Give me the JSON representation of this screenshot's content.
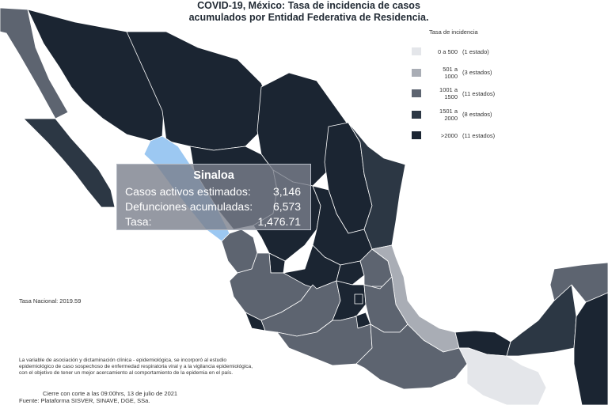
{
  "title": {
    "line1": "COVID-19, México: Tasa de incidencia de casos",
    "line2": "acumulados por Entidad Federativa de Residencia."
  },
  "legend": {
    "title": "Tasa de incidencia",
    "items": [
      {
        "range": "0 a 500",
        "count": "(1 estado)",
        "color": "#e4e6ea"
      },
      {
        "range": "501 a 1000",
        "count": "(3 estados)",
        "color": "#a9adb5"
      },
      {
        "range": "1001 a 1500",
        "count": "(11 estados)",
        "color": "#5d6470"
      },
      {
        "range": "1501 a 2000",
        "count": "(8 estados)",
        "color": "#2c3744"
      },
      {
        "range": ">2000",
        "count": "(11 estados)",
        "color": "#1b2532"
      }
    ]
  },
  "tooltip": {
    "state": "Sinaloa",
    "rows": [
      {
        "label": "Casos activos estimados:",
        "value": "3,146"
      },
      {
        "label": "Defunciones acumuladas:",
        "value": "6,573"
      },
      {
        "label": "Tasa:",
        "value": "1,476.71"
      }
    ],
    "highlight_color": "#9cc8f2"
  },
  "national_rate": "Tasa Nacional: 2019.59",
  "note": {
    "line1": "La variable de asociación y dictaminación clínica - epidemiológica, se incorporó al estudio",
    "line2": "epidemiológico de caso sospechoso de enfermedad respiratoria viral y a la vigilancia epidemiológica,",
    "line3": "con el objetivo de tener un mejor acercamiento al comportamiento de la epidemia en el país."
  },
  "footer": {
    "cutoff": "Cierre con corte a las 09:00hrs, 13 de julio de 2021",
    "source": "Fuente: Plataforma SISVER, SINAVE, DGE, SSa."
  },
  "colors": {
    "very_dark": "#1b2532",
    "dark": "#2c3744",
    "mid": "#5d6470",
    "light": "#a9adb5",
    "lightest": "#e4e6ea",
    "highlight": "#9cc8f2"
  }
}
